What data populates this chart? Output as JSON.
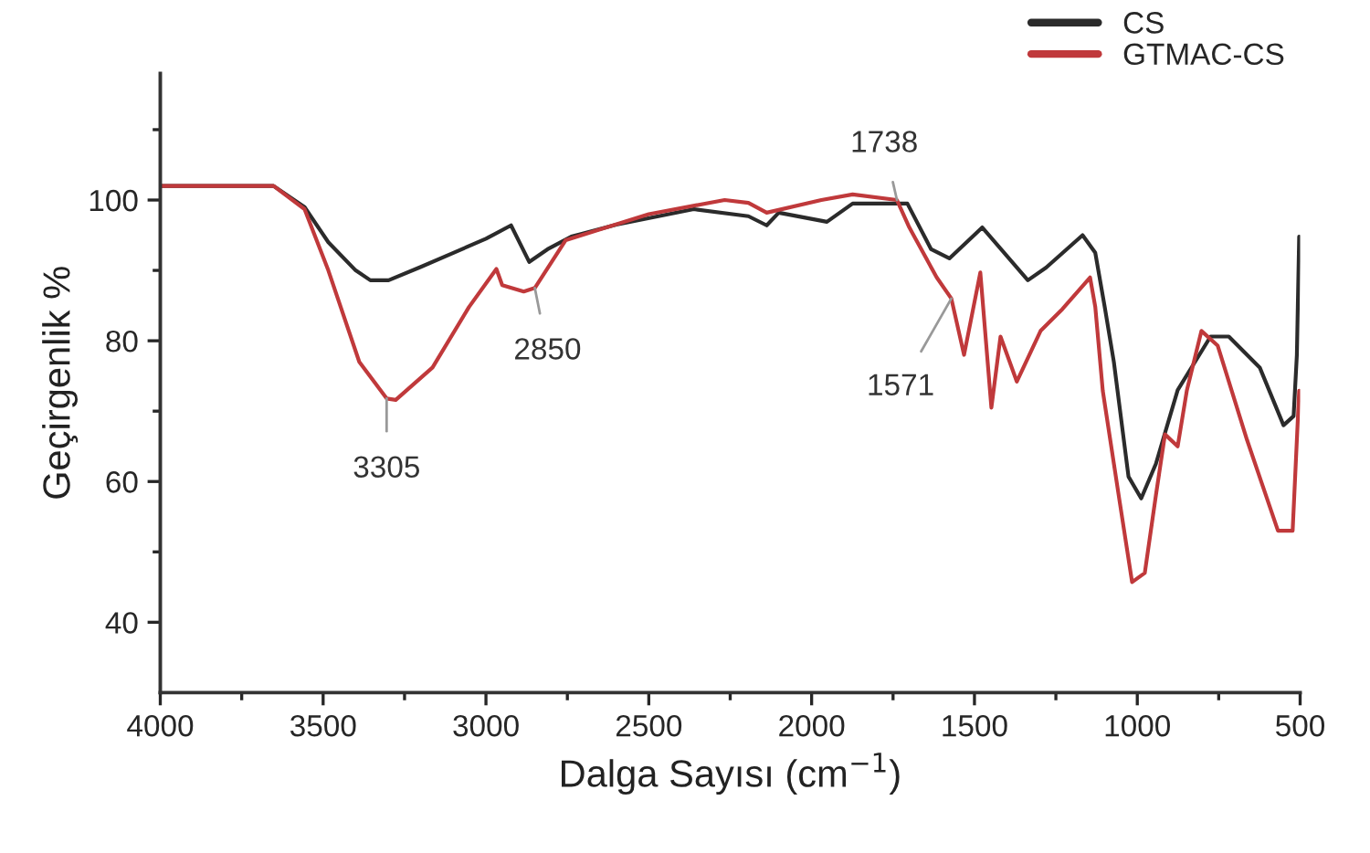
{
  "chart_data": {
    "type": "line",
    "xlabel": "Dalga Sayısı (cm$^{−1}$)",
    "ylabel": "Geçirgenlik %",
    "xlim": [
      4000,
      500
    ],
    "xticks": [
      4000,
      3500,
      3000,
      2500,
      2000,
      1500,
      1000,
      500
    ],
    "ylim": [
      30,
      118
    ],
    "yticks": [
      40,
      60,
      80,
      100
    ],
    "grid": false,
    "legend": "top right",
    "marker": "none",
    "line_style": "solid",
    "series": [
      {
        "name": "CS",
        "color": "#2b2b2b",
        "x": [
          4000,
          3652,
          3557,
          3484,
          3400,
          3355,
          3299,
          3200,
          3100,
          3000,
          2923,
          2867,
          2811,
          2738,
          2600,
          2362,
          2194,
          2138,
          2101,
          1953,
          1874,
          1706,
          1633,
          1577,
          1476,
          1336,
          1280,
          1168,
          1129,
          1100,
          1072,
          1027,
          988,
          943,
          876,
          775,
          719,
          624,
          551,
          520,
          510,
          503
        ],
        "values": [
          102,
          102,
          99,
          94,
          90,
          88.6,
          88.6,
          90.5,
          92.5,
          94.5,
          96.4,
          91.2,
          93,
          94.8,
          96.5,
          98.7,
          97.7,
          96.4,
          98.2,
          96.9,
          99.5,
          99.5,
          93,
          91.7,
          96.1,
          88.6,
          90.4,
          95,
          92.5,
          84.8,
          77,
          60.7,
          57.6,
          62.5,
          73,
          80.6,
          80.6,
          76.2,
          68,
          69.3,
          78,
          94.8
        ]
      },
      {
        "name": "GTMAC-CS",
        "color": "#c0393b",
        "x": [
          4000,
          3652,
          3557,
          3484,
          3389,
          3305,
          3277,
          3164,
          3052,
          2968,
          2950,
          2884,
          2850,
          2755,
          2500,
          2267,
          2194,
          2138,
          1970,
          1874,
          1738,
          1700,
          1616,
          1571,
          1532,
          1482,
          1448,
          1420,
          1370,
          1297,
          1230,
          1145,
          1129,
          1106,
          1055,
          1016,
          977,
          943,
          915,
          876,
          848,
          803,
          753,
          663,
          568,
          523,
          503
        ],
        "values": [
          102,
          102,
          98.7,
          90,
          77,
          71.8,
          71.6,
          76.2,
          84.8,
          90.2,
          87.9,
          87,
          87.5,
          94.3,
          98,
          100,
          99.6,
          98.2,
          100,
          100.8,
          100,
          96.1,
          89,
          86,
          78,
          89.7,
          70.5,
          80.6,
          74.2,
          81.4,
          84.5,
          89,
          84.8,
          72.9,
          57.4,
          45.7,
          47,
          58,
          66.7,
          65,
          72.9,
          81.4,
          79.3,
          65.9,
          53,
          53,
          72.9
        ]
      }
    ],
    "annotations": [
      {
        "text": "3305",
        "x": 3305,
        "y": 71.8
      },
      {
        "text": "2850",
        "x": 2850,
        "y": 87.5
      },
      {
        "text": "1738",
        "x": 1738,
        "y": 100
      },
      {
        "text": "1571",
        "x": 1571,
        "y": 86
      }
    ]
  }
}
